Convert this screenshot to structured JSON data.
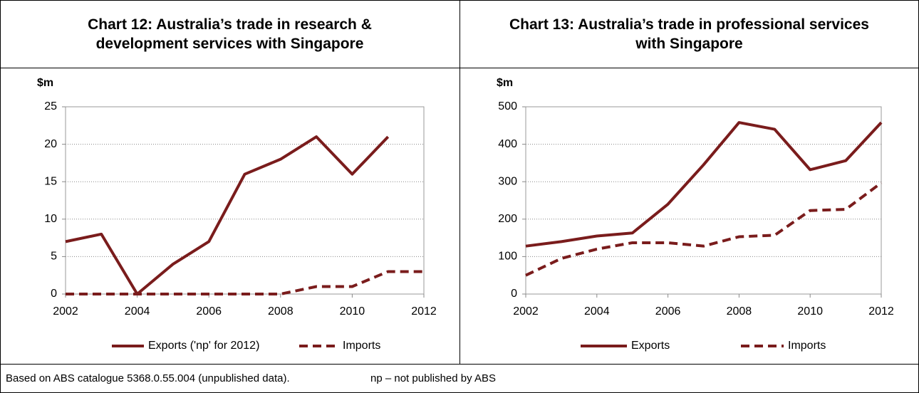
{
  "chart_data": [
    {
      "type": "line",
      "title": "Chart 12: Australia’s trade in research & development services with Singapore",
      "y_label": "$m",
      "x": [
        2002,
        2003,
        2004,
        2005,
        2006,
        2007,
        2008,
        2009,
        2010,
        2011,
        2012
      ],
      "series": [
        {
          "name": "Exports ('np' for 2012)",
          "color": "#7a1c1c",
          "style": "solid",
          "values": [
            7,
            8,
            0,
            4,
            7,
            16,
            18,
            21,
            16,
            21,
            null
          ]
        },
        {
          "name": "Imports",
          "color": "#7a1c1c",
          "style": "dashed",
          "values": [
            0,
            0,
            0,
            0,
            0,
            0,
            0,
            1,
            1,
            3,
            3
          ]
        }
      ],
      "xlim": [
        2002,
        2012
      ],
      "xticks": [
        2002,
        2004,
        2006,
        2008,
        2010,
        2012
      ],
      "ylim": [
        0,
        25
      ],
      "yticks": [
        0,
        5,
        10,
        15,
        20,
        25
      ],
      "grid": true,
      "legend": "bottom"
    },
    {
      "type": "line",
      "title": "Chart 13: Australia’s trade in professional services with Singapore",
      "y_label": "$m",
      "x": [
        2002,
        2003,
        2004,
        2005,
        2006,
        2007,
        2008,
        2009,
        2010,
        2011,
        2012
      ],
      "series": [
        {
          "name": "Exports",
          "color": "#7a1c1c",
          "style": "solid",
          "values": [
            128,
            140,
            155,
            163,
            240,
            345,
            458,
            440,
            332,
            356,
            458
          ]
        },
        {
          "name": "Imports",
          "color": "#7a1c1c",
          "style": "dashed",
          "values": [
            50,
            95,
            120,
            137,
            137,
            128,
            153,
            157,
            223,
            226,
            297
          ]
        }
      ],
      "xlim": [
        2002,
        2012
      ],
      "xticks": [
        2002,
        2004,
        2006,
        2008,
        2010,
        2012
      ],
      "ylim": [
        0,
        500
      ],
      "yticks": [
        0,
        100,
        200,
        300,
        400,
        500
      ],
      "grid": true,
      "legend": "bottom"
    }
  ],
  "footer": {
    "source": "Based on ABS catalogue 5368.0.55.004 (unpublished data).",
    "note": "np – not published by ABS"
  }
}
